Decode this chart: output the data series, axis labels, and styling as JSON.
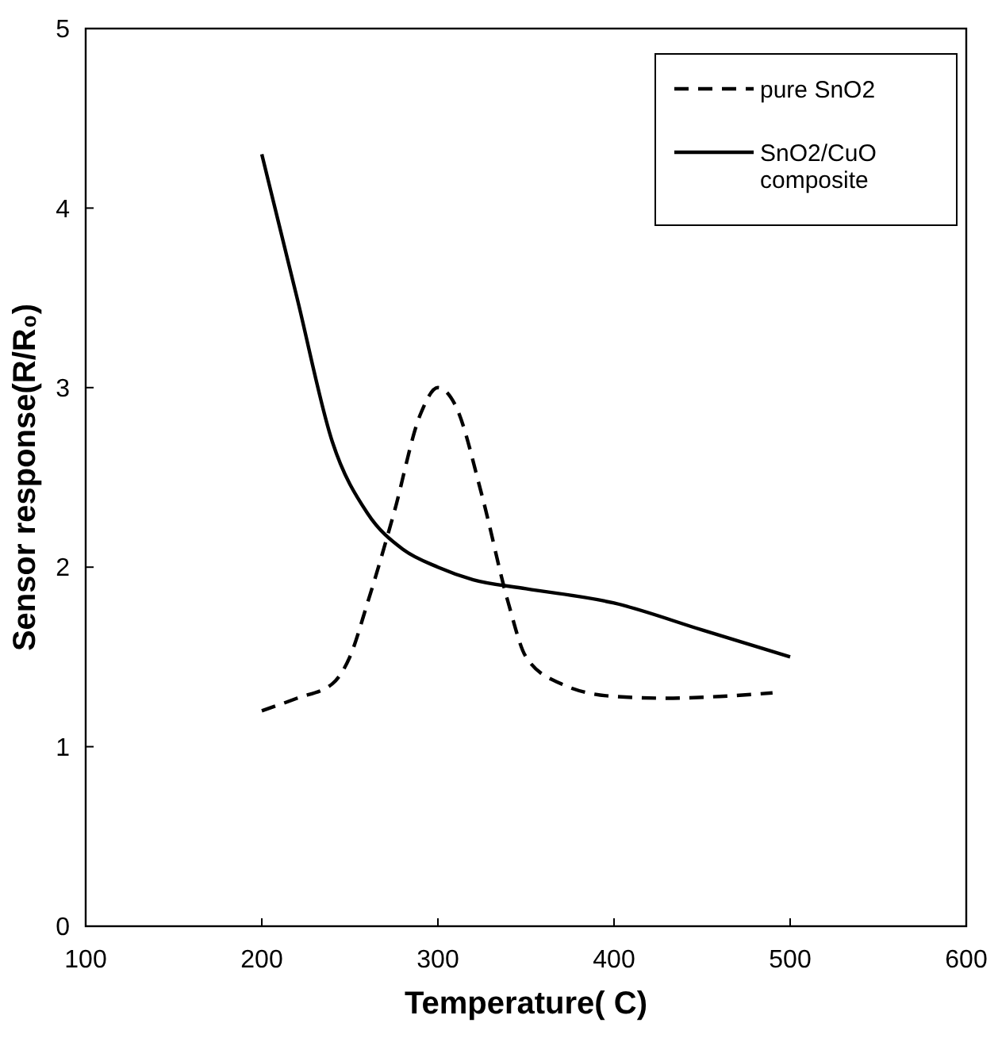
{
  "chart_data": {
    "type": "line",
    "xlabel": "Temperature( C)",
    "ylabel": "Sensor response(R/R₀)",
    "xlim": [
      100,
      600
    ],
    "xticks": [
      100,
      200,
      300,
      400,
      500,
      600
    ],
    "ylim": [
      0,
      5
    ],
    "yticks": [
      0,
      1,
      2,
      3,
      4,
      5
    ],
    "grid": false,
    "legend": "top right",
    "marker": "none",
    "series": [
      {
        "name": "pure SnO2",
        "color": "#000000",
        "line_style": "dashed",
        "x": [
          200,
          220,
          240,
          250,
          260,
          275,
          290,
          300,
          310,
          325,
          340,
          350,
          370,
          400,
          430,
          460,
          490
        ],
        "values": [
          1.2,
          1.27,
          1.35,
          1.5,
          1.8,
          2.3,
          2.85,
          3.0,
          2.9,
          2.4,
          1.8,
          1.5,
          1.35,
          1.28,
          1.27,
          1.28,
          1.3
        ]
      },
      {
        "name": "SnO2/CuO composite",
        "color": "#000000",
        "line_style": "solid",
        "x": [
          200,
          220,
          240,
          260,
          280,
          300,
          320,
          350,
          400,
          450,
          500
        ],
        "values": [
          4.3,
          3.5,
          2.7,
          2.3,
          2.1,
          2.0,
          1.93,
          1.88,
          1.8,
          1.65,
          1.5
        ]
      }
    ]
  }
}
